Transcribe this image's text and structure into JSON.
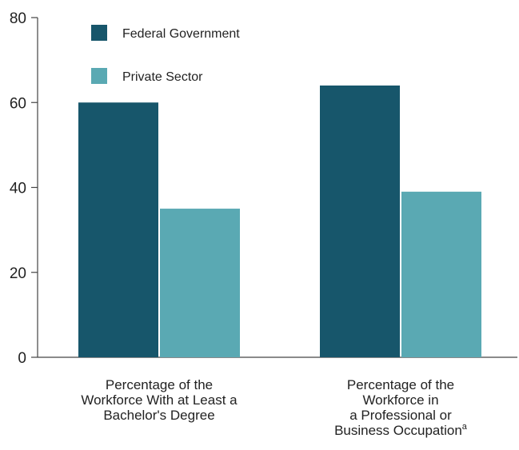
{
  "chart_data": {
    "type": "bar",
    "title": "",
    "xlabel": "",
    "ylabel": "",
    "ylim": [
      0,
      80
    ],
    "yticks": [
      0,
      20,
      40,
      60,
      80
    ],
    "grid": false,
    "legend_position": "top-left",
    "categories": [
      {
        "lines": [
          "Percentage of the",
          "Workforce With at Least a",
          "Bachelor's Degree"
        ],
        "superscript": ""
      },
      {
        "lines": [
          "Percentage of the",
          "Workforce in",
          "a Professional or",
          "Business Occupation"
        ],
        "superscript": "a"
      }
    ],
    "series": [
      {
        "name": "Federal Government",
        "color": "#17566b",
        "values": [
          60,
          64
        ]
      },
      {
        "name": "Private Sector",
        "color": "#5aa9b3",
        "values": [
          35,
          39
        ]
      }
    ],
    "axis_color": "#444444"
  }
}
